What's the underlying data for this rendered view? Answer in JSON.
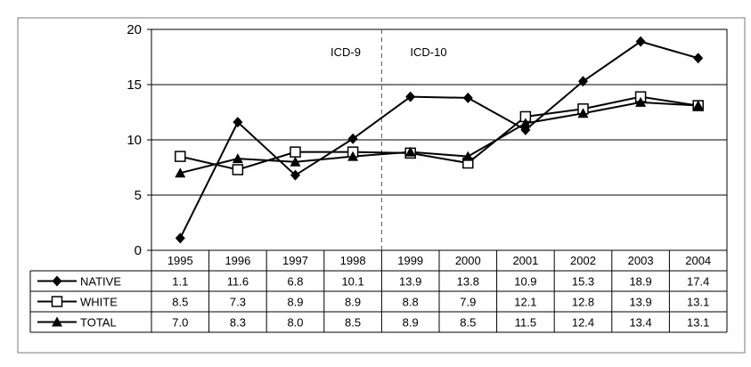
{
  "chart_data": {
    "type": "line",
    "title": "",
    "xlabel": "",
    "ylabel": "",
    "categories": [
      "1995",
      "1996",
      "1997",
      "1998",
      "1999",
      "2000",
      "2001",
      "2002",
      "2003",
      "2004"
    ],
    "ylim": [
      0,
      20
    ],
    "yticks": [
      "0",
      "5",
      "10",
      "15",
      "20"
    ],
    "grid": "horizontal",
    "legend": "data-table",
    "annotations": {
      "left": "ICD-9",
      "right": "ICD-10"
    },
    "divider_between": [
      "1998",
      "1999"
    ],
    "series": [
      {
        "name": "NATIVE",
        "marker": "diamond",
        "values": [
          1.1,
          11.6,
          6.8,
          10.1,
          13.9,
          13.8,
          10.9,
          15.3,
          18.9,
          17.4
        ],
        "labels": [
          "1.1",
          "11.6",
          "6.8",
          "10.1",
          "13.9",
          "13.8",
          "10.9",
          "15.3",
          "18.9",
          "17.4"
        ]
      },
      {
        "name": "WHITE",
        "marker": "square-open",
        "values": [
          8.5,
          7.3,
          8.9,
          8.9,
          8.8,
          7.9,
          12.1,
          12.8,
          13.9,
          13.1
        ],
        "labels": [
          "8.5",
          "7.3",
          "8.9",
          "8.9",
          "8.8",
          "7.9",
          "12.1",
          "12.8",
          "13.9",
          "13.1"
        ]
      },
      {
        "name": "TOTAL",
        "marker": "triangle",
        "values": [
          7.0,
          8.3,
          8.0,
          8.5,
          8.9,
          8.5,
          11.5,
          12.4,
          13.4,
          13.1
        ],
        "labels": [
          "7.0",
          "8.3",
          "8.0",
          "8.5",
          "8.9",
          "8.5",
          "11.5",
          "12.4",
          "13.4",
          "13.1"
        ]
      }
    ]
  }
}
